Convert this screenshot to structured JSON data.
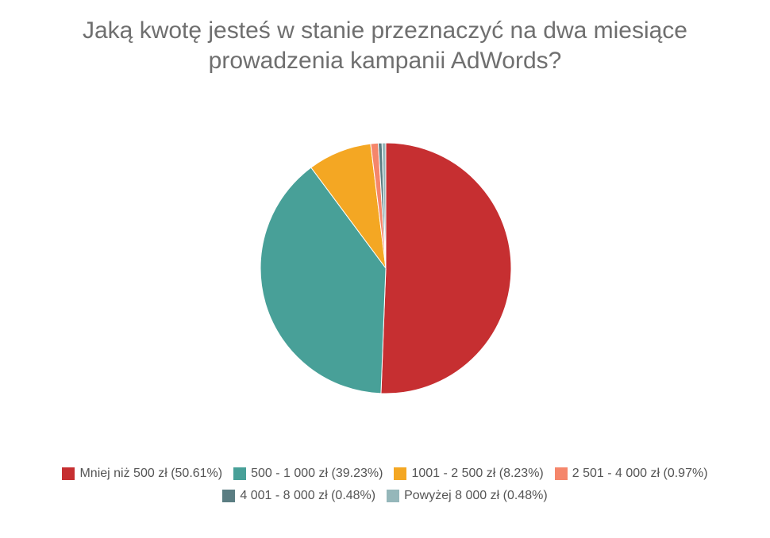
{
  "chart_data": {
    "type": "pie",
    "title_lines": [
      "Jaką kwotę jesteś w stanie przeznaczyć na dwa miesiące",
      "prowadzenia kampanii AdWords?"
    ],
    "slices": [
      {
        "label": "Mniej niż 500 zł (50.61%)",
        "value": 50.61,
        "color": "#c62f31"
      },
      {
        "label": "500 - 1 000 zł (39.23%)",
        "value": 39.23,
        "color": "#48a098"
      },
      {
        "label": "1001 - 2 500 zł (8.23%)",
        "value": 8.23,
        "color": "#f4a723"
      },
      {
        "label": "2 501 - 4 000 zł (0.97%)",
        "value": 0.97,
        "color": "#f5866b"
      },
      {
        "label": "4 001 - 8 000 zł (0.48%)",
        "value": 0.48,
        "color": "#5a7d82"
      },
      {
        "label": "Powyżej 8 000 zł (0.48%)",
        "value": 0.48,
        "color": "#95b7ba"
      }
    ],
    "legend_position": "bottom"
  }
}
